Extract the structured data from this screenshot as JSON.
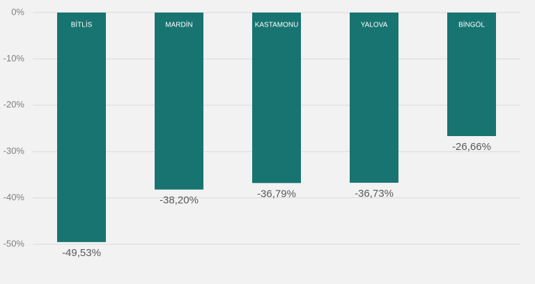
{
  "chart_data": {
    "type": "bar",
    "categories": [
      "BİTLİS",
      "MARDİN",
      "KASTAMONU",
      "YALOVA",
      "BİNGÖL"
    ],
    "values": [
      -49.53,
      -38.2,
      -36.79,
      -36.73,
      -26.66
    ],
    "value_labels": [
      "-49,53%",
      "-38,20%",
      "-36,79%",
      "-36,73%",
      "-26,66%"
    ],
    "color": "#177471",
    "ylim": [
      -50,
      0
    ],
    "yticks": [
      {
        "value": 0,
        "label": "0%"
      },
      {
        "value": -10,
        "label": "-10%"
      },
      {
        "value": -20,
        "label": "-20%"
      },
      {
        "value": -30,
        "label": "-30%"
      },
      {
        "value": -40,
        "label": "-40%"
      },
      {
        "value": -50,
        "label": "-50%"
      }
    ],
    "grid": true
  }
}
